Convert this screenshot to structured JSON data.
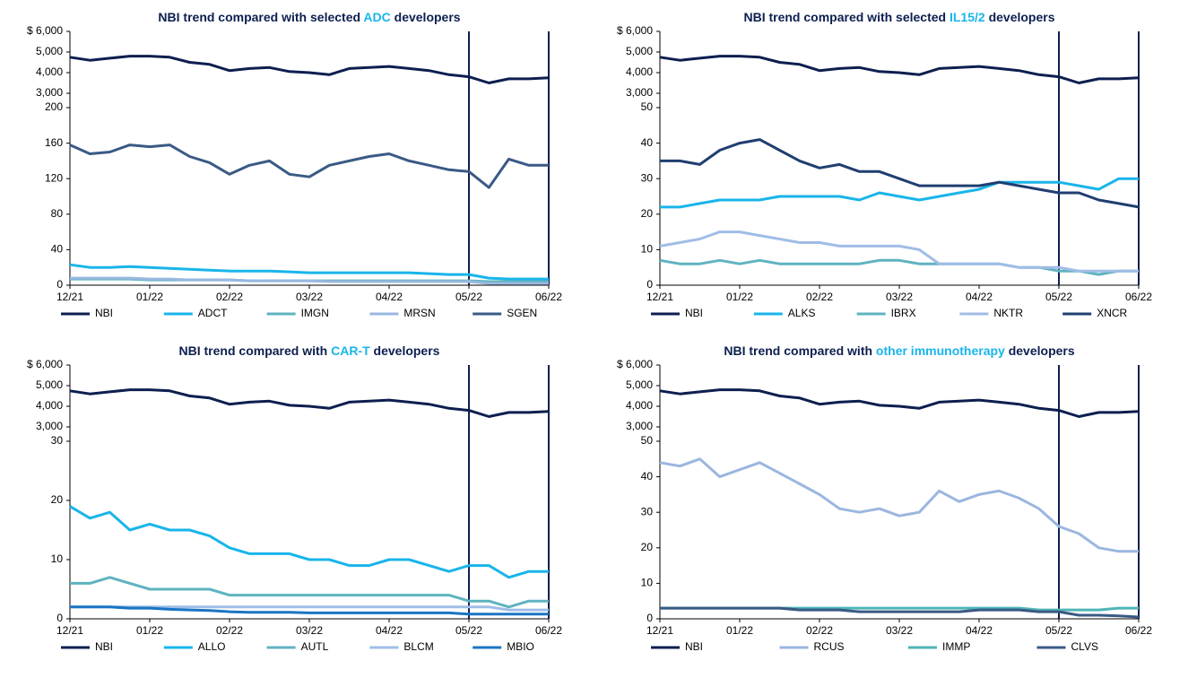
{
  "chart_data": [
    {
      "type": "line",
      "title": [
        {
          "text": "NBI trend compared with selected "
        },
        {
          "text": "ADC",
          "color": "#19b5ea"
        },
        {
          "text": " developers"
        }
      ],
      "categories": [
        "12/21",
        null,
        null,
        null,
        "01/22",
        null,
        null,
        null,
        "02/22",
        null,
        null,
        null,
        "03/22",
        null,
        null,
        null,
        "04/22",
        null,
        null,
        null,
        "05/22",
        null,
        null,
        null,
        "06/22"
      ],
      "ylim": [
        0,
        200
      ],
      "yticks": [
        0,
        40,
        80,
        120,
        160,
        200
      ],
      "y2lim": [
        3000,
        6000
      ],
      "y2ticks": [
        {
          "value": 3000,
          "label": "3,000"
        },
        {
          "value": 4000,
          "label": "4,000"
        },
        {
          "value": 5000,
          "label": "5,000"
        },
        {
          "value": 6000,
          "label": "$ 6,000"
        }
      ],
      "series": [
        {
          "name": "NBI",
          "color": "#0d1f4f",
          "axis": "y2",
          "values": [
            4750,
            4600,
            4700,
            4800,
            4800,
            4750,
            4500,
            4400,
            4100,
            4200,
            4250,
            4050,
            4000,
            3900,
            4200,
            4250,
            4300,
            4200,
            4100,
            3900,
            3800,
            3500,
            3700,
            3700,
            3750
          ]
        },
        {
          "name": "ADCT",
          "color": "#19b5ea",
          "values": [
            23,
            20,
            20,
            21,
            20,
            19,
            18,
            17,
            16,
            16,
            16,
            15,
            14,
            14,
            14,
            14,
            14,
            14,
            13,
            12,
            12,
            8,
            7,
            7,
            7
          ]
        },
        {
          "name": "IMGN",
          "color": "#5fb3c0",
          "values": [
            7,
            7,
            7,
            7,
            6,
            6,
            6,
            6,
            6,
            5,
            5,
            5,
            5,
            5,
            5,
            5,
            5,
            5,
            5,
            5,
            5,
            4,
            4,
            4,
            4
          ]
        },
        {
          "name": "MRSN",
          "color": "#99b8e0",
          "values": [
            8,
            8,
            8,
            8,
            7,
            7,
            6,
            6,
            6,
            5,
            5,
            5,
            5,
            4,
            4,
            4,
            4,
            4,
            4,
            4,
            4,
            2,
            2,
            2,
            2
          ]
        },
        {
          "name": "SGEN",
          "color": "#3a5a85",
          "values": [
            158,
            148,
            150,
            158,
            156,
            158,
            145,
            138,
            125,
            135,
            140,
            125,
            122,
            135,
            140,
            145,
            148,
            140,
            135,
            130,
            128,
            110,
            142,
            135,
            135
          ]
        }
      ]
    },
    {
      "type": "line",
      "title": [
        {
          "text": "NBI trend compared with selected "
        },
        {
          "text": "IL15/2",
          "color": "#19b5ea"
        },
        {
          "text": " developers"
        }
      ],
      "categories": [
        "12/21",
        null,
        null,
        null,
        "01/22",
        null,
        null,
        null,
        "02/22",
        null,
        null,
        null,
        "03/22",
        null,
        null,
        null,
        "04/22",
        null,
        null,
        null,
        "05/22",
        null,
        null,
        null,
        "06/22"
      ],
      "ylim": [
        0,
        50
      ],
      "yticks": [
        0,
        10,
        20,
        30,
        40,
        50
      ],
      "y2lim": [
        3000,
        6000
      ],
      "y2ticks": [
        {
          "value": 3000,
          "label": "3,000"
        },
        {
          "value": 4000,
          "label": "4,000"
        },
        {
          "value": 5000,
          "label": "5,000"
        },
        {
          "value": 6000,
          "label": "$ 6,000"
        }
      ],
      "series": [
        {
          "name": "NBI",
          "color": "#0d1f4f",
          "axis": "y2",
          "values": [
            4750,
            4600,
            4700,
            4800,
            4800,
            4750,
            4500,
            4400,
            4100,
            4200,
            4250,
            4050,
            4000,
            3900,
            4200,
            4250,
            4300,
            4200,
            4100,
            3900,
            3800,
            3500,
            3700,
            3700,
            3750
          ]
        },
        {
          "name": "ALKS",
          "color": "#19b5ea",
          "values": [
            22,
            22,
            23,
            24,
            24,
            24,
            25,
            25,
            25,
            25,
            24,
            26,
            25,
            24,
            25,
            26,
            27,
            29,
            29,
            29,
            29,
            28,
            27,
            30,
            30
          ]
        },
        {
          "name": "IBRX",
          "color": "#5fb3c0",
          "values": [
            7,
            6,
            6,
            7,
            6,
            7,
            6,
            6,
            6,
            6,
            6,
            7,
            7,
            6,
            6,
            6,
            6,
            6,
            5,
            5,
            4,
            4,
            3,
            4,
            4
          ]
        },
        {
          "name": "NKTR",
          "color": "#a0bde6",
          "values": [
            11,
            12,
            13,
            15,
            15,
            14,
            13,
            12,
            12,
            11,
            11,
            11,
            11,
            10,
            6,
            6,
            6,
            6,
            5,
            5,
            5,
            4,
            4,
            4,
            4
          ]
        },
        {
          "name": "XNCR",
          "color": "#203e70",
          "values": [
            35,
            35,
            34,
            38,
            40,
            41,
            38,
            35,
            33,
            34,
            32,
            32,
            30,
            28,
            28,
            28,
            28,
            29,
            28,
            27,
            26,
            26,
            24,
            23,
            22
          ]
        }
      ]
    },
    {
      "type": "line",
      "title": [
        {
          "text": "NBI trend compared with "
        },
        {
          "text": "CAR-T",
          "color": "#19b5ea"
        },
        {
          "text": " developers"
        }
      ],
      "categories": [
        "12/21",
        null,
        null,
        null,
        "01/22",
        null,
        null,
        null,
        "02/22",
        null,
        null,
        null,
        "03/22",
        null,
        null,
        null,
        "04/22",
        null,
        null,
        null,
        "05/22",
        null,
        null,
        null,
        "06/22"
      ],
      "ylim": [
        0,
        30
      ],
      "yticks": [
        0,
        10,
        20,
        30
      ],
      "y2lim": [
        3000,
        6000
      ],
      "y2ticks": [
        {
          "value": 3000,
          "label": "3,000"
        },
        {
          "value": 4000,
          "label": "4,000"
        },
        {
          "value": 5000,
          "label": "5,000"
        },
        {
          "value": 6000,
          "label": "$ 6,000"
        }
      ],
      "series": [
        {
          "name": "NBI",
          "color": "#0d1f4f",
          "axis": "y2",
          "values": [
            4750,
            4600,
            4700,
            4800,
            4800,
            4750,
            4500,
            4400,
            4100,
            4200,
            4250,
            4050,
            4000,
            3900,
            4200,
            4250,
            4300,
            4200,
            4100,
            3900,
            3800,
            3500,
            3700,
            3700,
            3750
          ]
        },
        {
          "name": "ALLO",
          "color": "#19b5ea",
          "values": [
            19,
            17,
            18,
            15,
            16,
            15,
            15,
            14,
            12,
            11,
            11,
            11,
            10,
            10,
            9,
            9,
            10,
            10,
            9,
            8,
            9,
            9,
            7,
            8,
            8
          ]
        },
        {
          "name": "AUTL",
          "color": "#5fb3c0",
          "values": [
            6,
            6,
            7,
            6,
            5,
            5,
            5,
            5,
            4,
            4,
            4,
            4,
            4,
            4,
            4,
            4,
            4,
            4,
            4,
            4,
            3,
            3,
            2,
            3,
            3
          ]
        },
        {
          "name": "BLCM",
          "color": "#a0bde6",
          "values": [
            2,
            2,
            2,
            2,
            2,
            2,
            2,
            2,
            2,
            2,
            2,
            2,
            2,
            2,
            2,
            2,
            2,
            2,
            2,
            2,
            2,
            2,
            1.5,
            1.5,
            1.5
          ]
        },
        {
          "name": "MBIO",
          "color": "#1a75c4",
          "values": [
            2,
            2,
            2,
            1.8,
            1.8,
            1.6,
            1.5,
            1.4,
            1.2,
            1.1,
            1.1,
            1.1,
            1,
            1,
            1,
            1,
            1,
            1,
            1,
            1,
            0.8,
            0.8,
            0.8,
            0.8,
            0.8
          ]
        }
      ]
    },
    {
      "type": "line",
      "title": [
        {
          "text": "NBI trend compared with "
        },
        {
          "text": "other immunotherapy",
          "color": "#19b5ea"
        },
        {
          "text": " developers"
        }
      ],
      "categories": [
        "12/21",
        null,
        null,
        null,
        "01/22",
        null,
        null,
        null,
        "02/22",
        null,
        null,
        null,
        "03/22",
        null,
        null,
        null,
        "04/22",
        null,
        null,
        null,
        "05/22",
        null,
        null,
        null,
        "06/22"
      ],
      "ylim": [
        0,
        50
      ],
      "yticks": [
        0,
        10,
        20,
        30,
        40,
        50
      ],
      "y2lim": [
        3000,
        6000
      ],
      "y2ticks": [
        {
          "value": 3000,
          "label": "3,000"
        },
        {
          "value": 4000,
          "label": "4,000"
        },
        {
          "value": 5000,
          "label": "5,000"
        },
        {
          "value": 6000,
          "label": "$ 6,000"
        }
      ],
      "series": [
        {
          "name": "NBI",
          "color": "#0d1f4f",
          "axis": "y2",
          "values": [
            4750,
            4600,
            4700,
            4800,
            4800,
            4750,
            4500,
            4400,
            4100,
            4200,
            4250,
            4050,
            4000,
            3900,
            4200,
            4250,
            4300,
            4200,
            4100,
            3900,
            3800,
            3500,
            3700,
            3700,
            3750
          ]
        },
        {
          "name": "RCUS",
          "color": "#9bb6df",
          "values": [
            44,
            43,
            45,
            40,
            42,
            44,
            41,
            38,
            35,
            31,
            30,
            31,
            29,
            30,
            36,
            33,
            35,
            36,
            34,
            31,
            26,
            24,
            20,
            19,
            19
          ]
        },
        {
          "name": "IMMP",
          "color": "#4fb5b5",
          "values": [
            3,
            3,
            3,
            3,
            3,
            3,
            3,
            3,
            3,
            3,
            3,
            3,
            3,
            3,
            3,
            3,
            3,
            3,
            3,
            2.5,
            2.5,
            2.5,
            2.5,
            3,
            3
          ]
        },
        {
          "name": "CLVS",
          "color": "#3a5a85",
          "values": [
            3,
            3,
            3,
            3,
            3,
            3,
            3,
            2.5,
            2.5,
            2.5,
            2,
            2,
            2,
            2,
            2,
            2,
            2.5,
            2.5,
            2.5,
            2,
            2,
            1,
            1,
            0.8,
            0.5
          ]
        }
      ]
    }
  ]
}
